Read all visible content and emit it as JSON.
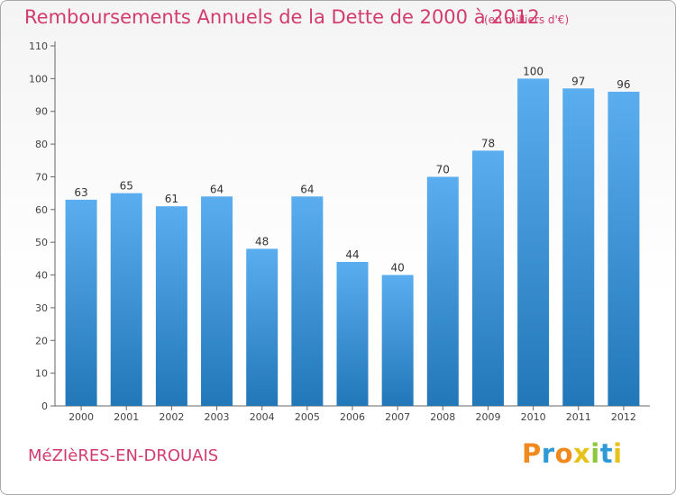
{
  "header": {
    "title": "Remboursements Annuels de la Dette de 2000 à 2012",
    "subtitle": "(en milliers d'€)"
  },
  "footer": {
    "location": "MéZIèRES-EN-DROUAIS",
    "brand": [
      "P",
      "r",
      "o",
      "x",
      "i",
      "t",
      "i"
    ]
  },
  "colors": {
    "title": "#d23c6d",
    "bar_top": "#5aaef0",
    "bar_bottom": "#2277b8",
    "brand_letters": [
      "#f08a1e",
      "#2f9ad5",
      "#f08a1e",
      "#e8c21c",
      "#8dc63f",
      "#2f9ad5",
      "#e8c21c"
    ]
  },
  "chart_data": {
    "type": "bar",
    "categories": [
      "2000",
      "2001",
      "2002",
      "2003",
      "2004",
      "2005",
      "2006",
      "2007",
      "2008",
      "2009",
      "2010",
      "2011",
      "2012"
    ],
    "values": [
      63,
      65,
      61,
      64,
      48,
      64,
      44,
      40,
      70,
      78,
      100,
      97,
      96
    ],
    "value_labels": [
      "63",
      "65",
      "61",
      "64",
      "48",
      "64",
      "44",
      "40",
      "70",
      "78",
      "100",
      "97",
      "96"
    ],
    "y_ticks": [
      "0",
      "10",
      "20",
      "30",
      "40",
      "50",
      "60",
      "70",
      "80",
      "90",
      "100",
      "110"
    ],
    "ylim": [
      0,
      110
    ],
    "grid": false
  }
}
